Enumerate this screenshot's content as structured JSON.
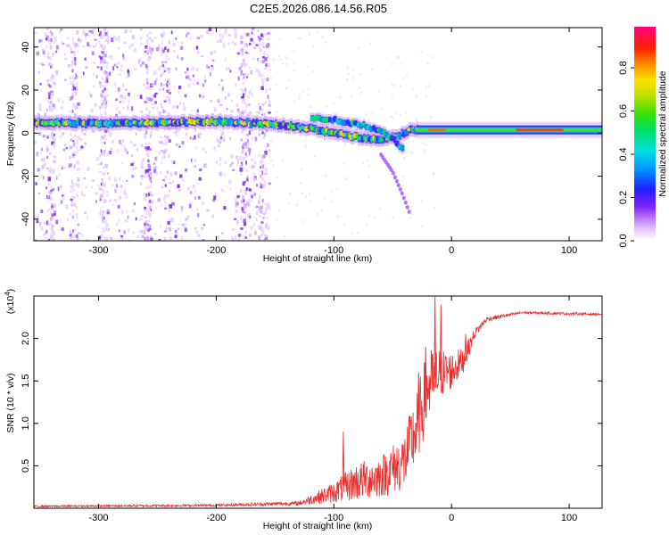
{
  "title": "C2E5.2026.086.14.56.R05",
  "chart_data": [
    {
      "type": "heatmap",
      "name": "spectrogram",
      "xlabel": "Height of straight line (km)",
      "ylabel": "Frequency (Hz)",
      "xlim": [
        -355,
        128
      ],
      "ylim": [
        -50,
        49
      ],
      "xticks": [
        -300,
        -200,
        -100,
        0,
        100
      ],
      "yticks": [
        -40,
        -20,
        0,
        20,
        40
      ],
      "colorbar": {
        "label": "Normalized spectral amplitude",
        "range": [
          0.0,
          0.99
        ],
        "ticks": [
          0.0,
          0.2,
          0.4,
          0.6,
          0.8
        ]
      },
      "main_trace": [
        {
          "x": -355,
          "f": 5
        },
        {
          "x": -300,
          "f": 4.5
        },
        {
          "x": -250,
          "f": 5
        },
        {
          "x": -200,
          "f": 5.5
        },
        {
          "x": -150,
          "f": 4
        },
        {
          "x": -120,
          "f": 2
        },
        {
          "x": -100,
          "f": 0
        },
        {
          "x": -80,
          "f": -2
        },
        {
          "x": -60,
          "f": -3
        },
        {
          "x": -45,
          "f": -1
        },
        {
          "x": -35,
          "f": 2
        },
        {
          "x": -20,
          "f": 1.5
        },
        {
          "x": 0,
          "f": 1.5
        },
        {
          "x": 50,
          "f": 1.5
        },
        {
          "x": 100,
          "f": 1
        },
        {
          "x": 128,
          "f": 1
        }
      ],
      "upper_branch": [
        {
          "x": -120,
          "f": 7
        },
        {
          "x": -100,
          "f": 6
        },
        {
          "x": -80,
          "f": 4
        },
        {
          "x": -60,
          "f": 1
        },
        {
          "x": -50,
          "f": -3
        },
        {
          "x": -42,
          "f": -8
        }
      ],
      "lower_branch": [
        {
          "x": -60,
          "f": -10
        },
        {
          "x": -50,
          "f": -18
        },
        {
          "x": -42,
          "f": -28
        },
        {
          "x": -35,
          "f": -38
        }
      ]
    },
    {
      "type": "line",
      "name": "snr",
      "xlabel": "Height of straight line (km)",
      "ylabel": "SNR (10 * v/v)",
      "scale_label": "(x10",
      "scale_exp": "4",
      "xlim": [
        -355,
        128
      ],
      "ylim": [
        0,
        2.5
      ],
      "xticks": [
        -300,
        -200,
        -100,
        0,
        100
      ],
      "yticks": [
        0.5,
        1.0,
        1.5,
        2.0
      ],
      "ytick_labels": [
        "0.5",
        "1.0",
        "1.5",
        "2.0"
      ],
      "color": "#e83030",
      "envelope": [
        {
          "x": -355,
          "base": 0.02,
          "amp": 0.02
        },
        {
          "x": -200,
          "base": 0.03,
          "amp": 0.03
        },
        {
          "x": -170,
          "base": 0.04,
          "amp": 0.04
        },
        {
          "x": -130,
          "base": 0.05,
          "amp": 0.05
        },
        {
          "x": -100,
          "base": 0.15,
          "amp": 0.25
        },
        {
          "x": -80,
          "base": 0.25,
          "amp": 0.45
        },
        {
          "x": -60,
          "base": 0.3,
          "amp": 0.5
        },
        {
          "x": -40,
          "base": 0.45,
          "amp": 0.7
        },
        {
          "x": -30,
          "base": 0.8,
          "amp": 0.9
        },
        {
          "x": -20,
          "base": 1.3,
          "amp": 0.9
        },
        {
          "x": -10,
          "base": 1.5,
          "amp": 0.6
        },
        {
          "x": 0,
          "base": 1.55,
          "amp": 0.45
        },
        {
          "x": 10,
          "base": 1.7,
          "amp": 0.3
        },
        {
          "x": 20,
          "base": 2.05,
          "amp": 0.12
        },
        {
          "x": 30,
          "base": 2.22,
          "amp": 0.06
        },
        {
          "x": 60,
          "base": 2.3,
          "amp": 0.03
        },
        {
          "x": 128,
          "base": 2.28,
          "amp": 0.03
        }
      ],
      "peaks": [
        {
          "x": -14,
          "y": 2.5
        },
        {
          "x": -9,
          "y": 2.4
        },
        {
          "x": -22,
          "y": 1.9
        },
        {
          "x": -28,
          "y": 1.6
        },
        {
          "x": -92,
          "y": 0.9
        },
        {
          "x": 12,
          "y": 2.05
        }
      ]
    }
  ]
}
